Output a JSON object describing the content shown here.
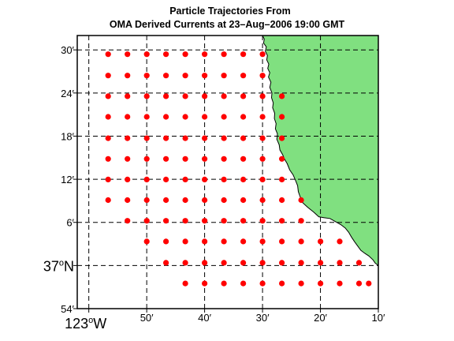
{
  "title_line1": "Particle Trajectories From",
  "title_line2": "OMA Derived Currents at 23–Aug–2006 19:00 GMT",
  "colors": {
    "land": "#80e080",
    "particle": "#ff0000",
    "grid": "#000000",
    "frame": "#000000"
  },
  "map": {
    "lon_range": [
      -123.0333,
      -122.1667
    ],
    "lat_range": [
      36.9,
      37.5333
    ],
    "x_ticks": [
      {
        "lon": -123.0,
        "label": "123",
        "major": true,
        "suffix": "W"
      },
      {
        "lon": -122.8333,
        "label": "50′",
        "major": false
      },
      {
        "lon": -122.6667,
        "label": "40′",
        "major": false
      },
      {
        "lon": -122.5,
        "label": "30′",
        "major": false
      },
      {
        "lon": -122.3333,
        "label": "20′",
        "major": false
      },
      {
        "lon": -122.1667,
        "label": "10′",
        "major": false
      }
    ],
    "y_ticks": [
      {
        "lat": 37.5,
        "label": "30′",
        "major": false
      },
      {
        "lat": 37.4,
        "label": "24′",
        "major": false
      },
      {
        "lat": 37.3,
        "label": "18′",
        "major": false
      },
      {
        "lat": 37.2,
        "label": "12′",
        "major": false
      },
      {
        "lat": 37.1,
        "label": "6′",
        "major": false
      },
      {
        "lat": 37.0,
        "label": "37",
        "major": true,
        "suffix": "N"
      },
      {
        "lat": 36.9,
        "label": "54′",
        "major": false
      }
    ],
    "coastline": [
      [
        -122.5,
        37.533
      ],
      [
        -122.495,
        37.525
      ],
      [
        -122.497,
        37.516
      ],
      [
        -122.489,
        37.507
      ],
      [
        -122.492,
        37.497
      ],
      [
        -122.486,
        37.487
      ],
      [
        -122.488,
        37.477
      ],
      [
        -122.482,
        37.467
      ],
      [
        -122.485,
        37.457
      ],
      [
        -122.479,
        37.447
      ],
      [
        -122.483,
        37.437
      ],
      [
        -122.476,
        37.425
      ],
      [
        -122.479,
        37.413
      ],
      [
        -122.473,
        37.4
      ],
      [
        -122.474,
        37.389
      ],
      [
        -122.469,
        37.377
      ],
      [
        -122.471,
        37.366
      ],
      [
        -122.465,
        37.353
      ],
      [
        -122.466,
        37.341
      ],
      [
        -122.461,
        37.329
      ],
      [
        -122.463,
        37.317
      ],
      [
        -122.457,
        37.305
      ],
      [
        -122.459,
        37.293
      ],
      [
        -122.452,
        37.28
      ],
      [
        -122.45,
        37.268
      ],
      [
        -122.442,
        37.257
      ],
      [
        -122.437,
        37.247
      ],
      [
        -122.429,
        37.236
      ],
      [
        -122.422,
        37.222
      ],
      [
        -122.412,
        37.21
      ],
      [
        -122.405,
        37.197
      ],
      [
        -122.399,
        37.185
      ],
      [
        -122.397,
        37.171
      ],
      [
        -122.391,
        37.158
      ],
      [
        -122.385,
        37.146
      ],
      [
        -122.37,
        37.135
      ],
      [
        -122.353,
        37.124
      ],
      [
        -122.338,
        37.113
      ],
      [
        -122.324,
        37.111
      ],
      [
        -122.306,
        37.109
      ],
      [
        -122.291,
        37.102
      ],
      [
        -122.275,
        37.095
      ],
      [
        -122.262,
        37.087
      ],
      [
        -122.252,
        37.077
      ],
      [
        -122.244,
        37.066
      ],
      [
        -122.235,
        37.055
      ],
      [
        -122.226,
        37.045
      ],
      [
        -122.217,
        37.035
      ],
      [
        -122.205,
        37.028
      ],
      [
        -122.194,
        37.022
      ],
      [
        -122.182,
        37.013
      ],
      [
        -122.176,
        37.006
      ],
      [
        -122.167,
        37.0
      ]
    ],
    "particles": [
      [
        -122.9444,
        37.4899
      ],
      [
        -122.8889,
        37.4899
      ],
      [
        -122.8333,
        37.4899
      ],
      [
        -122.7778,
        37.4899
      ],
      [
        -122.7222,
        37.4899
      ],
      [
        -122.6667,
        37.4899
      ],
      [
        -122.6111,
        37.4899
      ],
      [
        -122.5556,
        37.4899
      ],
      [
        -122.5,
        37.4899
      ],
      [
        -122.9444,
        37.4405
      ],
      [
        -122.8889,
        37.4405
      ],
      [
        -122.8333,
        37.4405
      ],
      [
        -122.7778,
        37.4405
      ],
      [
        -122.7222,
        37.4405
      ],
      [
        -122.6667,
        37.4405
      ],
      [
        -122.6111,
        37.4405
      ],
      [
        -122.5556,
        37.4405
      ],
      [
        -122.5,
        37.4405
      ],
      [
        -122.9444,
        37.3926
      ],
      [
        -122.8889,
        37.3926
      ],
      [
        -122.8333,
        37.3926
      ],
      [
        -122.7778,
        37.3926
      ],
      [
        -122.7222,
        37.3926
      ],
      [
        -122.6667,
        37.3926
      ],
      [
        -122.6111,
        37.3926
      ],
      [
        -122.5556,
        37.3926
      ],
      [
        -122.5,
        37.3926
      ],
      [
        -122.4444,
        37.3926
      ],
      [
        -122.9444,
        37.3447
      ],
      [
        -122.8889,
        37.3447
      ],
      [
        -122.8333,
        37.3447
      ],
      [
        -122.7778,
        37.3447
      ],
      [
        -122.7222,
        37.3447
      ],
      [
        -122.6667,
        37.3447
      ],
      [
        -122.6111,
        37.3447
      ],
      [
        -122.5556,
        37.3447
      ],
      [
        -122.5,
        37.3447
      ],
      [
        -122.4444,
        37.3447
      ],
      [
        -122.9444,
        37.2952
      ],
      [
        -122.8889,
        37.2952
      ],
      [
        -122.8333,
        37.2952
      ],
      [
        -122.7778,
        37.2952
      ],
      [
        -122.7222,
        37.2952
      ],
      [
        -122.6667,
        37.2952
      ],
      [
        -122.6111,
        37.2952
      ],
      [
        -122.5556,
        37.2952
      ],
      [
        -122.5,
        37.2952
      ],
      [
        -122.4444,
        37.2952
      ],
      [
        -122.9444,
        37.2473
      ],
      [
        -122.8889,
        37.2473
      ],
      [
        -122.8333,
        37.2473
      ],
      [
        -122.7778,
        37.2473
      ],
      [
        -122.7222,
        37.2473
      ],
      [
        -122.6667,
        37.2473
      ],
      [
        -122.6111,
        37.2473
      ],
      [
        -122.5556,
        37.2473
      ],
      [
        -122.5,
        37.2473
      ],
      [
        -122.4444,
        37.2473
      ],
      [
        -122.9444,
        37.1994
      ],
      [
        -122.8889,
        37.1994
      ],
      [
        -122.8333,
        37.1994
      ],
      [
        -122.7778,
        37.1994
      ],
      [
        -122.7222,
        37.1994
      ],
      [
        -122.6667,
        37.1994
      ],
      [
        -122.6111,
        37.1994
      ],
      [
        -122.5556,
        37.1994
      ],
      [
        -122.5,
        37.1994
      ],
      [
        -122.4444,
        37.1994
      ],
      [
        -122.9444,
        37.1516
      ],
      [
        -122.8889,
        37.1516
      ],
      [
        -122.8333,
        37.1516
      ],
      [
        -122.7778,
        37.1516
      ],
      [
        -122.7222,
        37.1516
      ],
      [
        -122.6667,
        37.1516
      ],
      [
        -122.6111,
        37.1516
      ],
      [
        -122.5556,
        37.1516
      ],
      [
        -122.5,
        37.1516
      ],
      [
        -122.4444,
        37.1516
      ],
      [
        -122.3889,
        37.1516
      ],
      [
        -122.8889,
        37.1037
      ],
      [
        -122.8333,
        37.1037
      ],
      [
        -122.7778,
        37.1037
      ],
      [
        -122.7222,
        37.1037
      ],
      [
        -122.6667,
        37.1037
      ],
      [
        -122.6111,
        37.1037
      ],
      [
        -122.5556,
        37.1037
      ],
      [
        -122.5,
        37.1037
      ],
      [
        -122.4444,
        37.1037
      ],
      [
        -122.3889,
        37.1037
      ],
      [
        -122.8333,
        37.0558
      ],
      [
        -122.7778,
        37.0558
      ],
      [
        -122.7222,
        37.0558
      ],
      [
        -122.6667,
        37.0558
      ],
      [
        -122.6111,
        37.0558
      ],
      [
        -122.5556,
        37.0558
      ],
      [
        -122.5,
        37.0558
      ],
      [
        -122.4444,
        37.0558
      ],
      [
        -122.3889,
        37.0558
      ],
      [
        -122.3333,
        37.0558
      ],
      [
        -122.2778,
        37.0558
      ],
      [
        -122.7778,
        37.0063
      ],
      [
        -122.7222,
        37.0063
      ],
      [
        -122.6667,
        37.0063
      ],
      [
        -122.6111,
        37.0063
      ],
      [
        -122.5556,
        37.0063
      ],
      [
        -122.5,
        37.0063
      ],
      [
        -122.4444,
        37.0063
      ],
      [
        -122.3889,
        37.0063
      ],
      [
        -122.3333,
        37.0063
      ],
      [
        -122.2778,
        37.0063
      ],
      [
        -122.2222,
        37.0063
      ],
      [
        -122.7222,
        36.9584
      ],
      [
        -122.6667,
        36.9584
      ],
      [
        -122.6111,
        36.9584
      ],
      [
        -122.5556,
        36.9584
      ],
      [
        -122.5,
        36.9584
      ],
      [
        -122.4444,
        36.9584
      ],
      [
        -122.3889,
        36.9584
      ],
      [
        -122.3333,
        36.9584
      ],
      [
        -122.2778,
        36.9584
      ],
      [
        -122.2222,
        36.9584
      ],
      [
        -122.1944,
        36.9584
      ]
    ]
  }
}
